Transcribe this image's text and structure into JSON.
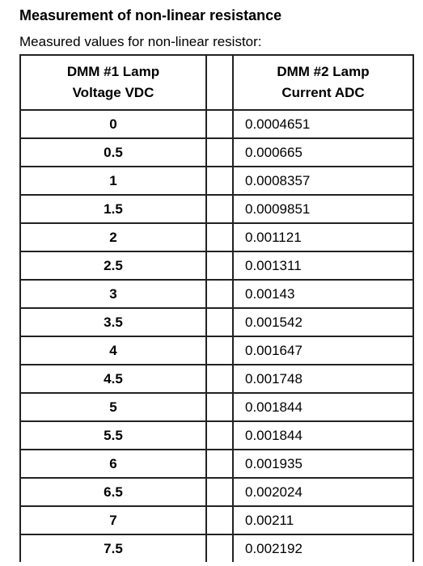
{
  "title": "Measurement of non-linear resistance",
  "subtitle": "Measured values for non-linear resistor:",
  "table": {
    "header": {
      "col1_line1": "DMM #1 Lamp",
      "col1_line2": "Voltage VDC",
      "col2_line1": "DMM #2 Lamp",
      "col2_line2": "Current ADC"
    },
    "rows": [
      {
        "voltage": "0",
        "current": "0.0004651"
      },
      {
        "voltage": "0.5",
        "current": "0.000665"
      },
      {
        "voltage": "1",
        "current": "0.0008357"
      },
      {
        "voltage": "1.5",
        "current": "0.0009851"
      },
      {
        "voltage": "2",
        "current": "0.001121"
      },
      {
        "voltage": "2.5",
        "current": "0.001311"
      },
      {
        "voltage": "3",
        "current": "0.00143"
      },
      {
        "voltage": "3.5",
        "current": "0.001542"
      },
      {
        "voltage": "4",
        "current": "0.001647"
      },
      {
        "voltage": "4.5",
        "current": "0.001748"
      },
      {
        "voltage": "5",
        "current": "0.001844"
      },
      {
        "voltage": "5.5",
        "current": "0.001844"
      },
      {
        "voltage": "6",
        "current": "0.001935"
      },
      {
        "voltage": "6.5",
        "current": "0.002024"
      },
      {
        "voltage": "7",
        "current": "0.00211"
      },
      {
        "voltage": "7.5",
        "current": "0.002192"
      }
    ]
  }
}
